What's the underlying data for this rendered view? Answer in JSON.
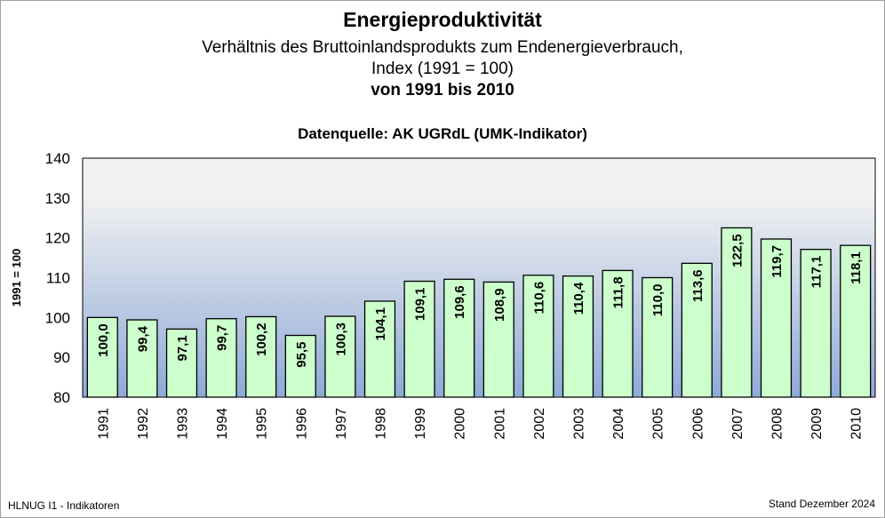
{
  "chart_data": {
    "type": "bar",
    "title": "Energieproduktivität",
    "subtitle": [
      "Verhältnis des Bruttoinlandsprodukts zum Endenergieverbrauch,",
      "Index (1991 = 100)",
      "von 1991  bis 2010"
    ],
    "source": "Datenquelle:  AK UGRdL (UMK-Indikator)",
    "ylabel": "1991 = 100",
    "xlabel": "",
    "ylim": [
      80,
      140
    ],
    "yticks": [
      80,
      90,
      100,
      110,
      120,
      130,
      140
    ],
    "categories": [
      "1991",
      "1992",
      "1993",
      "1994",
      "1995",
      "1996",
      "1997",
      "1998",
      "1999",
      "2000",
      "2001",
      "2002",
      "2003",
      "2004",
      "2005",
      "2006",
      "2007",
      "2008",
      "2009",
      "2010"
    ],
    "values": [
      100.0,
      99.4,
      97.1,
      99.7,
      100.2,
      95.5,
      100.3,
      104.1,
      109.1,
      109.6,
      108.9,
      110.6,
      110.4,
      111.8,
      110.0,
      113.6,
      122.5,
      119.7,
      117.1,
      118.1
    ],
    "data_labels": [
      "100,0",
      "99,4",
      "97,1",
      "99,7",
      "100,2",
      "95,5",
      "100,3",
      "104,1",
      "109,1",
      "109,6",
      "108,9",
      "110,6",
      "110,4",
      "111,8",
      "110,0",
      "113,6",
      "122,5",
      "119,7",
      "117,1",
      "118,1"
    ],
    "grid": false,
    "legend": "none",
    "colors": {
      "bar": "#ccffcc",
      "bar_border": "#000000",
      "plot_top": "#f2f2f2",
      "plot_bottom": "#8eaad6"
    }
  },
  "footer": {
    "left": "HLNUG I1 - Indikatoren",
    "right": "Stand Dezember 2024"
  }
}
